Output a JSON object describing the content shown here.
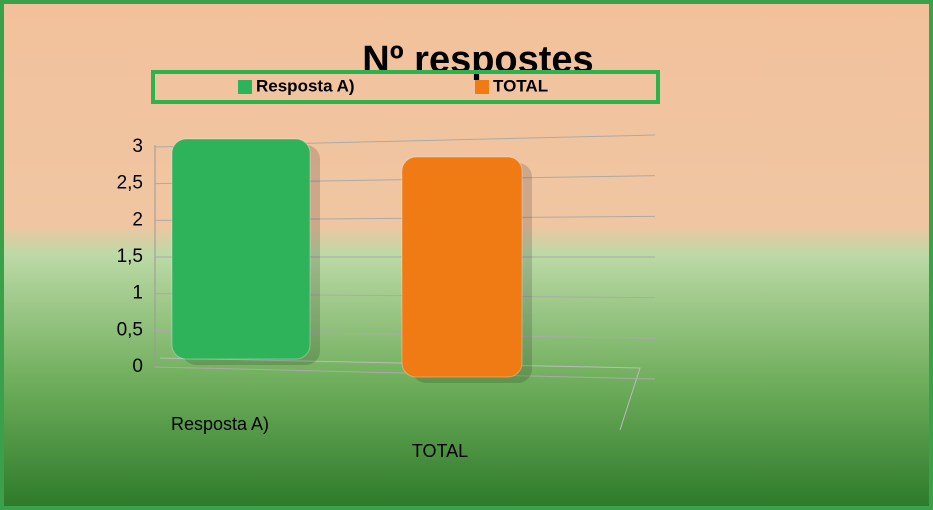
{
  "chart_data": {
    "type": "bar",
    "title": "Nº respostes",
    "categories": [
      "Resposta A)",
      "TOTAL"
    ],
    "values": [
      3,
      3
    ],
    "colors": [
      "#2fb35a",
      "#f07a14"
    ],
    "ylim": [
      0,
      3
    ],
    "yticks": [
      0,
      {
        "value": 0.5,
        "label": "0,5"
      },
      1,
      {
        "value": 1.5,
        "label": "1,5"
      },
      2,
      {
        "value": 2.5,
        "label": "2,5"
      },
      3
    ],
    "grid": true,
    "legend": "top"
  }
}
